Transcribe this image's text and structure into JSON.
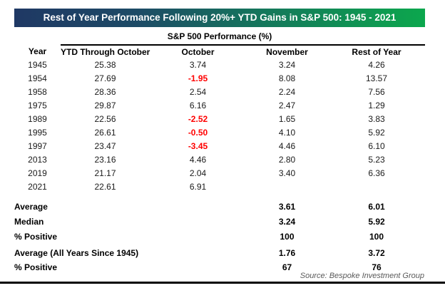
{
  "colors": {
    "title_gradient_left": "#1F3864",
    "title_gradient_mid": "#14795B",
    "title_gradient_right": "#0CA74D",
    "title_text": "#FFFFFF",
    "negative_value": "#FF0000",
    "body_text": "#1A1A1A",
    "source_text": "#595959",
    "bottom_rule": "#000000"
  },
  "chart_data": {
    "type": "table",
    "title": "Rest of Year Performance Following 20%+ YTD Gains in S&P 500: 1945 - 2021",
    "subtitle": "S&P 500 Performance (%)",
    "source": "Source: Bespoke Investment Group",
    "columns": [
      "Year",
      "YTD Through October",
      "October",
      "November",
      "Rest of Year"
    ],
    "rows": [
      [
        "1945",
        "25.38",
        "3.74",
        "3.24",
        "4.26"
      ],
      [
        "1954",
        "27.69",
        "-1.95",
        "8.08",
        "13.57"
      ],
      [
        "1958",
        "28.36",
        "2.54",
        "2.24",
        "7.56"
      ],
      [
        "1975",
        "29.87",
        "6.16",
        "2.47",
        "1.29"
      ],
      [
        "1989",
        "22.56",
        "-2.52",
        "1.65",
        "3.83"
      ],
      [
        "1995",
        "26.61",
        "-0.50",
        "4.10",
        "5.92"
      ],
      [
        "1997",
        "23.47",
        "-3.45",
        "4.46",
        "6.10"
      ],
      [
        "2013",
        "23.16",
        "4.46",
        "2.80",
        "5.23"
      ],
      [
        "2019",
        "21.17",
        "2.04",
        "3.40",
        "6.36"
      ],
      [
        "2021",
        "22.61",
        "6.91",
        "",
        ""
      ]
    ],
    "summary_rows": [
      {
        "label": "Average",
        "november": "3.61",
        "rest_of_year": "6.01"
      },
      {
        "label": "Median",
        "november": "3.24",
        "rest_of_year": "5.92"
      },
      {
        "label": "% Positive",
        "november": "100",
        "rest_of_year": "100"
      }
    ],
    "all_years_rows": [
      {
        "label": "Average (All Years Since 1945)",
        "november": "1.76",
        "rest_of_year": "3.72"
      },
      {
        "label": "% Positive",
        "november": "67",
        "rest_of_year": "76"
      }
    ]
  }
}
